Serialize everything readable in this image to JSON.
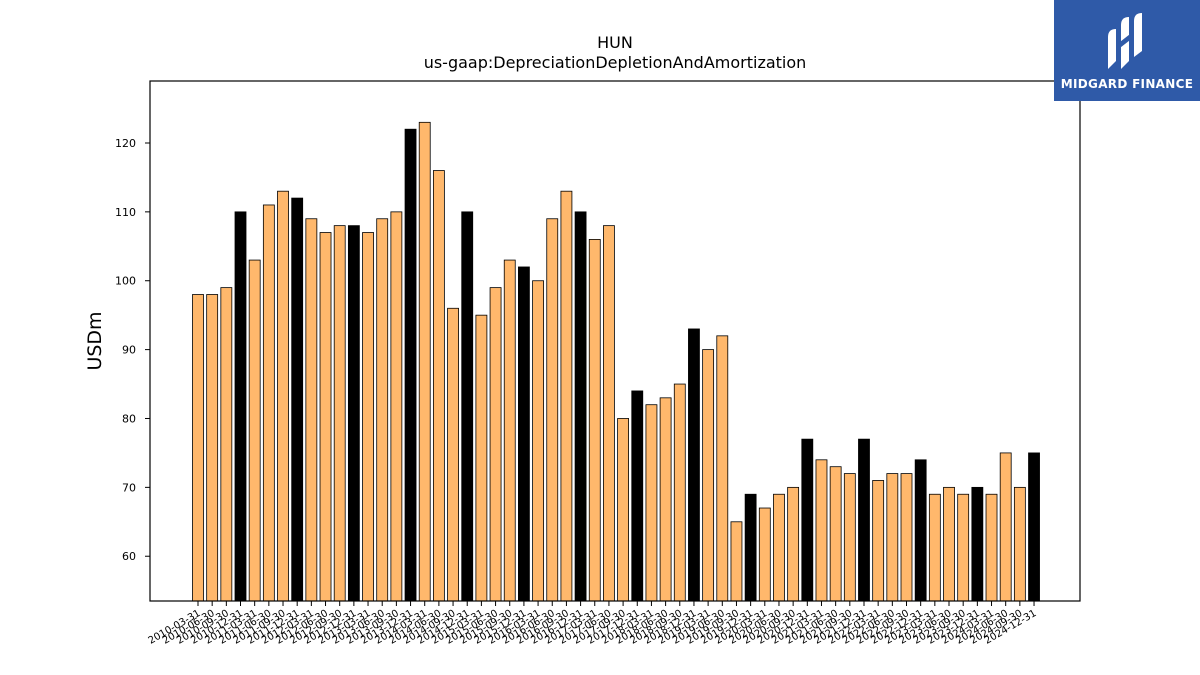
{
  "chart_data": {
    "type": "bar",
    "title": "HUN",
    "subtitle": "us-gaap:DepreciationDepletionAndAmortization",
    "xlabel": "",
    "ylabel": "USDm",
    "ylim": [
      53.5,
      129
    ],
    "yticks": [
      60,
      70,
      80,
      90,
      100,
      110,
      120
    ],
    "grid": false,
    "colors": {
      "quarter": "#ffb86c",
      "year_end": "#000000",
      "edge": "#000000"
    },
    "categories": [
      "2010-03-31",
      "2010-06-30",
      "2010-09-30",
      "2010-12-31",
      "2011-03-31",
      "2011-06-30",
      "2011-09-30",
      "2011-12-31",
      "2012-03-31",
      "2012-06-30",
      "2012-09-30",
      "2012-12-31",
      "2013-03-31",
      "2013-06-30",
      "2013-09-30",
      "2013-12-31",
      "2014-03-31",
      "2014-06-30",
      "2014-09-30",
      "2014-12-31",
      "2015-03-31",
      "2015-06-30",
      "2015-09-30",
      "2015-12-31",
      "2016-03-31",
      "2016-06-30",
      "2016-09-30",
      "2016-12-31",
      "2017-03-31",
      "2017-06-30",
      "2017-09-30",
      "2017-12-31",
      "2018-03-31",
      "2018-06-30",
      "2018-09-30",
      "2018-12-31",
      "2019-03-31",
      "2019-06-30",
      "2019-09-30",
      "2019-12-31",
      "2020-03-31",
      "2020-06-30",
      "2020-09-30",
      "2020-12-31",
      "2021-03-31",
      "2021-06-30",
      "2021-09-30",
      "2021-12-31",
      "2022-03-31",
      "2022-06-30",
      "2022-09-30",
      "2022-12-31",
      "2023-03-31",
      "2023-06-30",
      "2023-09-30",
      "2023-12-31",
      "2024-03-31",
      "2024-06-30",
      "2024-09-30",
      "2024-12-31"
    ],
    "values": [
      98,
      98,
      99,
      110,
      103,
      111,
      113,
      112,
      109,
      107,
      108,
      108,
      107,
      109,
      110,
      122,
      123,
      116,
      96,
      110,
      95,
      99,
      103,
      102,
      100,
      109,
      113,
      110,
      106,
      108,
      80,
      84,
      82,
      83,
      85,
      93,
      90,
      92,
      65,
      69,
      67,
      69,
      70,
      77,
      74,
      73,
      72,
      77,
      71,
      72,
      72,
      74,
      69,
      70,
      69,
      70,
      69,
      75,
      70,
      75
    ]
  },
  "logo": {
    "text": "MIDGARD FINANCE",
    "icon": "midgard-logo-icon",
    "background": "#2f5aa8"
  }
}
